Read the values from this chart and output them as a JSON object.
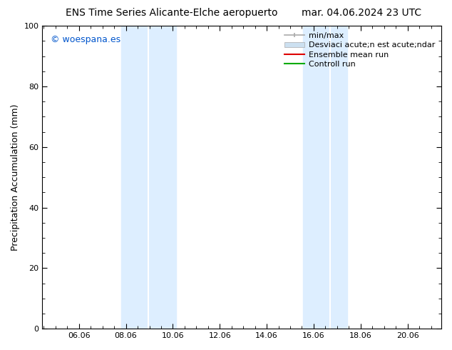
{
  "title_left": "ENS Time Series Alicante-Elche aeropuerto",
  "title_right": "mar. 04.06.2024 23 UTC",
  "ylabel": "Precipitation Accumulation (mm)",
  "watermark": "© woespana.es",
  "watermark_color": "#0055cc",
  "xlim_start": 4.5,
  "xlim_end": 21.5,
  "ylim": [
    0,
    100
  ],
  "xticks": [
    6.06,
    8.06,
    10.06,
    12.06,
    14.06,
    16.06,
    18.06,
    20.06
  ],
  "xtick_labels": [
    "06.06",
    "08.06",
    "10.06",
    "12.06",
    "14.06",
    "16.06",
    "18.06",
    "20.06"
  ],
  "yticks": [
    0,
    20,
    40,
    60,
    80,
    100
  ],
  "band1_x0": 7.85,
  "band1_xmid": 9.0,
  "band1_x1": 10.2,
  "band2_x0": 15.6,
  "band2_xmid": 16.75,
  "band2_x1": 17.5,
  "band_color": "#ddeeff",
  "band_sep_color": "#ffffff",
  "legend_label_minmax": "min/max",
  "legend_label_std": "Desviaci acute;n est acute;ndar",
  "legend_label_ensemble": "Ensemble mean run",
  "legend_label_control": "Controll run",
  "color_minmax": "#aaaaaa",
  "color_std": "#cce0f0",
  "color_ensemble": "#dd0000",
  "color_control": "#00aa00",
  "background_color": "#ffffff",
  "plot_bg_color": "#ffffff",
  "fontsize_title": 10,
  "fontsize_labels": 9,
  "fontsize_ticks": 8,
  "fontsize_legend": 8,
  "fontsize_watermark": 9
}
